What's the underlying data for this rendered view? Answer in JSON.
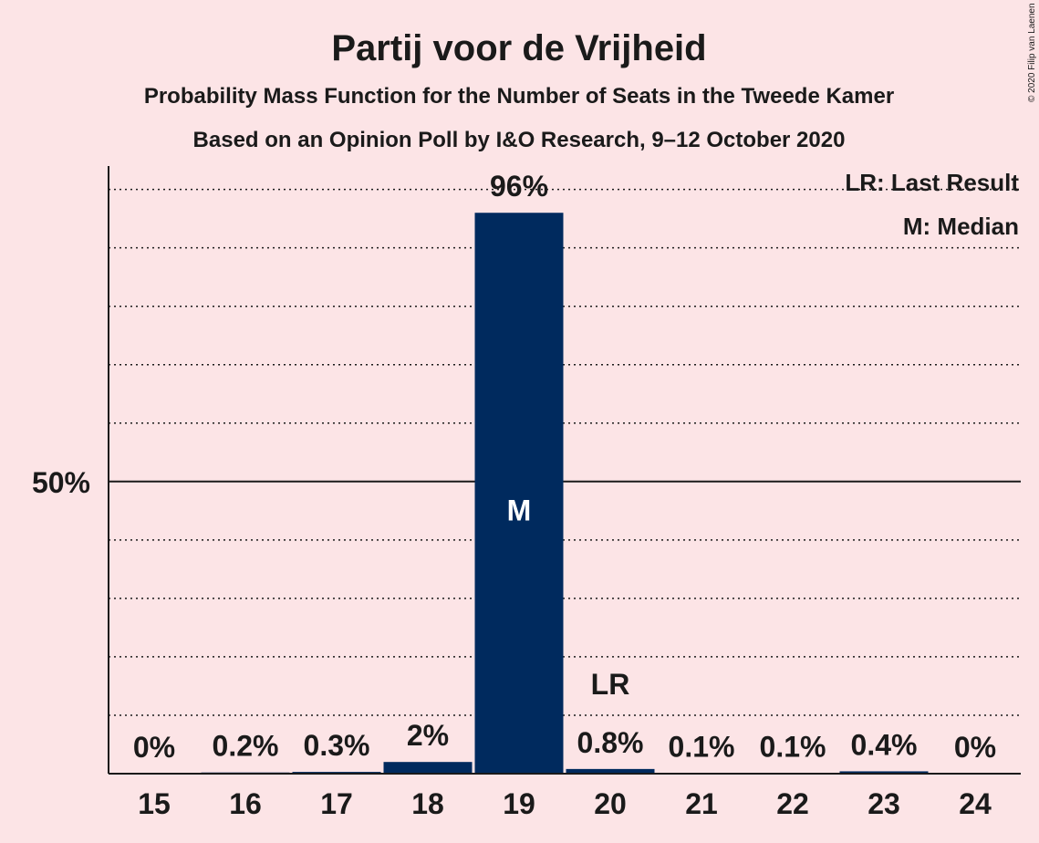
{
  "title": "Partij voor de Vrijheid",
  "subtitle1": "Probability Mass Function for the Number of Seats in the Tweede Kamer",
  "subtitle2": "Based on an Opinion Poll by I&O Research, 9–12 October 2020",
  "legend": {
    "last_result": "LR: Last Result",
    "median": "M: Median"
  },
  "copyright": "© 2020 Filip van Laenen",
  "colors": {
    "background": "#fce4e6",
    "bar": "#002a5e",
    "text": "#1a1a1a"
  },
  "chart_data": {
    "type": "bar",
    "categories": [
      "15",
      "16",
      "17",
      "18",
      "19",
      "20",
      "21",
      "22",
      "23",
      "24"
    ],
    "values": [
      0,
      0.2,
      0.3,
      2,
      96,
      0.8,
      0.1,
      0.1,
      0.4,
      0
    ],
    "labels": [
      "0%",
      "0.2%",
      "0.3%",
      "2%",
      "96%",
      "0.8%",
      "0.1%",
      "0.1%",
      "0.4%",
      "0%"
    ],
    "ylim": [
      0,
      104
    ],
    "yticks": [
      {
        "value": 50,
        "label": "50%"
      }
    ],
    "grid_dotted_every": 10,
    "median": {
      "category": "19",
      "label": "M"
    },
    "last_result": {
      "category": "20",
      "label": "LR"
    }
  }
}
